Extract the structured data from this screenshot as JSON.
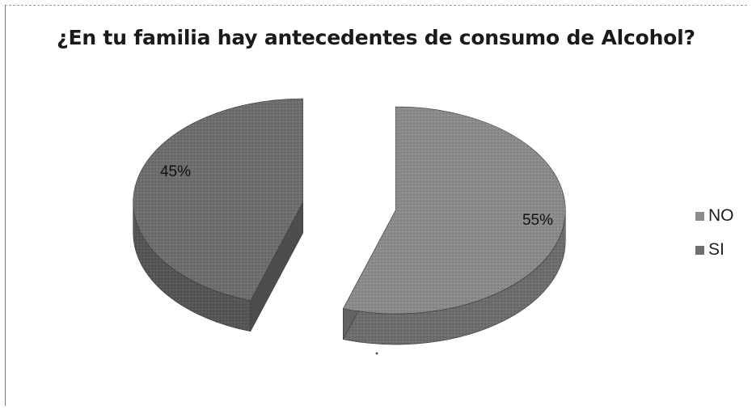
{
  "chart_data": {
    "type": "pie",
    "title": "¿En tu familia hay antecedentes de consumo de Alcohol?",
    "categories": [
      "NO",
      "SI"
    ],
    "values": [
      55,
      45
    ],
    "data_labels": [
      "55%",
      "45%"
    ],
    "legend_position": "right",
    "style": "3d-exploded",
    "colors": {
      "NO": "#8c8c8c",
      "SI": "#6e6e6e"
    }
  }
}
